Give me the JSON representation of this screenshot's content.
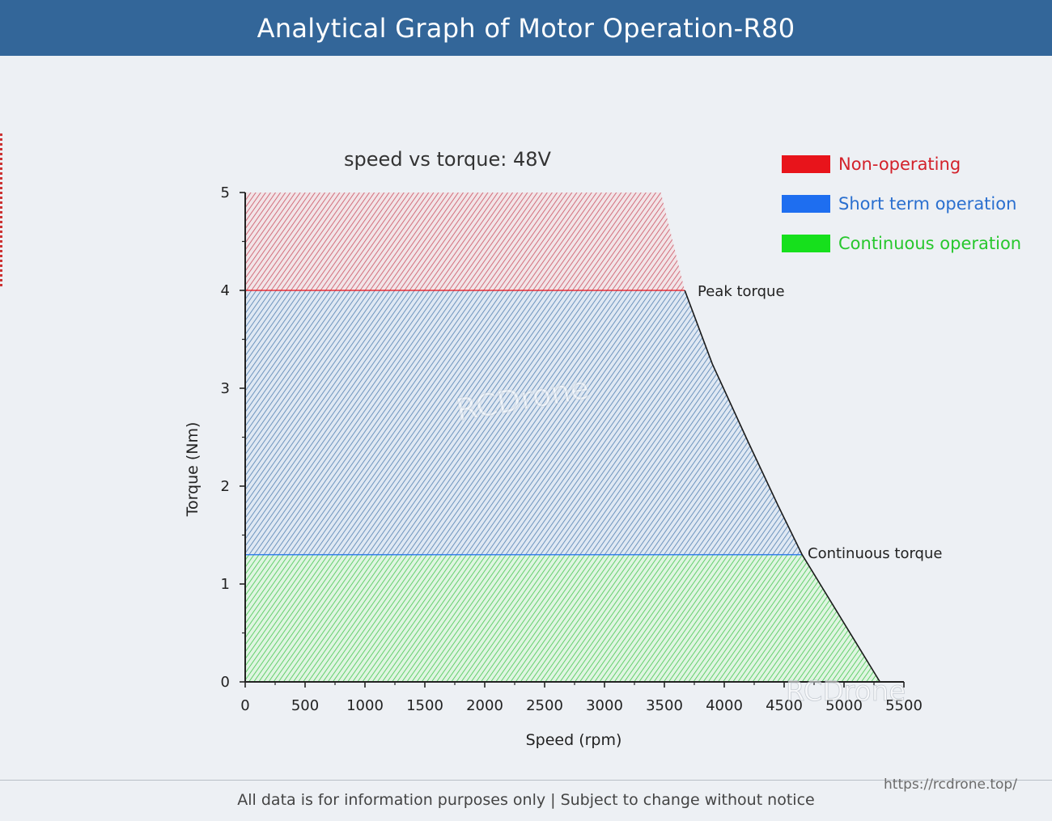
{
  "header": {
    "title": "Analytical Graph of Motor Operation-R80"
  },
  "chart_data": {
    "type": "area",
    "title": "speed vs torque: 48V",
    "xlabel": "Speed (rpm)",
    "ylabel": "Torque (Nm)",
    "xlim": [
      0,
      5500
    ],
    "ylim": [
      0,
      5
    ],
    "xticks": [
      0,
      500,
      1000,
      1500,
      2000,
      2500,
      3000,
      3500,
      4000,
      4500,
      5000,
      5500
    ],
    "yticks": [
      0,
      1,
      2,
      3,
      4,
      5
    ],
    "legend_position": "top-right",
    "grid": false,
    "series": [
      {
        "name": "Non-operating",
        "color": "#e8141b",
        "upper": {
          "x": [
            0,
            3470,
            3670
          ],
          "y": [
            5,
            5,
            4
          ]
        },
        "lower": {
          "x": [
            0,
            3670
          ],
          "y": [
            4,
            4
          ]
        }
      },
      {
        "name": "Short term operation",
        "color": "#1e6ef0",
        "upper": {
          "x": [
            0,
            3670,
            3900,
            4200,
            4450,
            4650
          ],
          "y": [
            4,
            4,
            3.25,
            2.45,
            1.8,
            1.3
          ]
        },
        "lower": {
          "x": [
            0,
            4650
          ],
          "y": [
            1.3,
            1.3
          ]
        }
      },
      {
        "name": "Continuous operation",
        "color": "#16e01c",
        "upper": {
          "x": [
            0,
            4650,
            4900,
            5100,
            5300
          ],
          "y": [
            1.3,
            1.3,
            0.8,
            0.4,
            0
          ]
        },
        "lower": {
          "x": [
            0,
            5300
          ],
          "y": [
            0,
            0
          ]
        }
      }
    ],
    "boundary_curve": {
      "x": [
        3670,
        3900,
        4200,
        4450,
        4650,
        4900,
        5100,
        5300
      ],
      "y": [
        4,
        3.25,
        2.45,
        1.8,
        1.3,
        0.8,
        0.4,
        0
      ]
    },
    "annotations": [
      {
        "text": "Peak torque",
        "x": 3670,
        "y": 4
      },
      {
        "text": "Continuous torque",
        "x": 4650,
        "y": 1.3
      }
    ]
  },
  "watermarks": {
    "center_logo": "RCDrone",
    "corner_logo": "RCDrone"
  },
  "footer": {
    "note": "All data is for information purposes only | Subject to change without notice",
    "url": "https://rcdrone.top/"
  }
}
